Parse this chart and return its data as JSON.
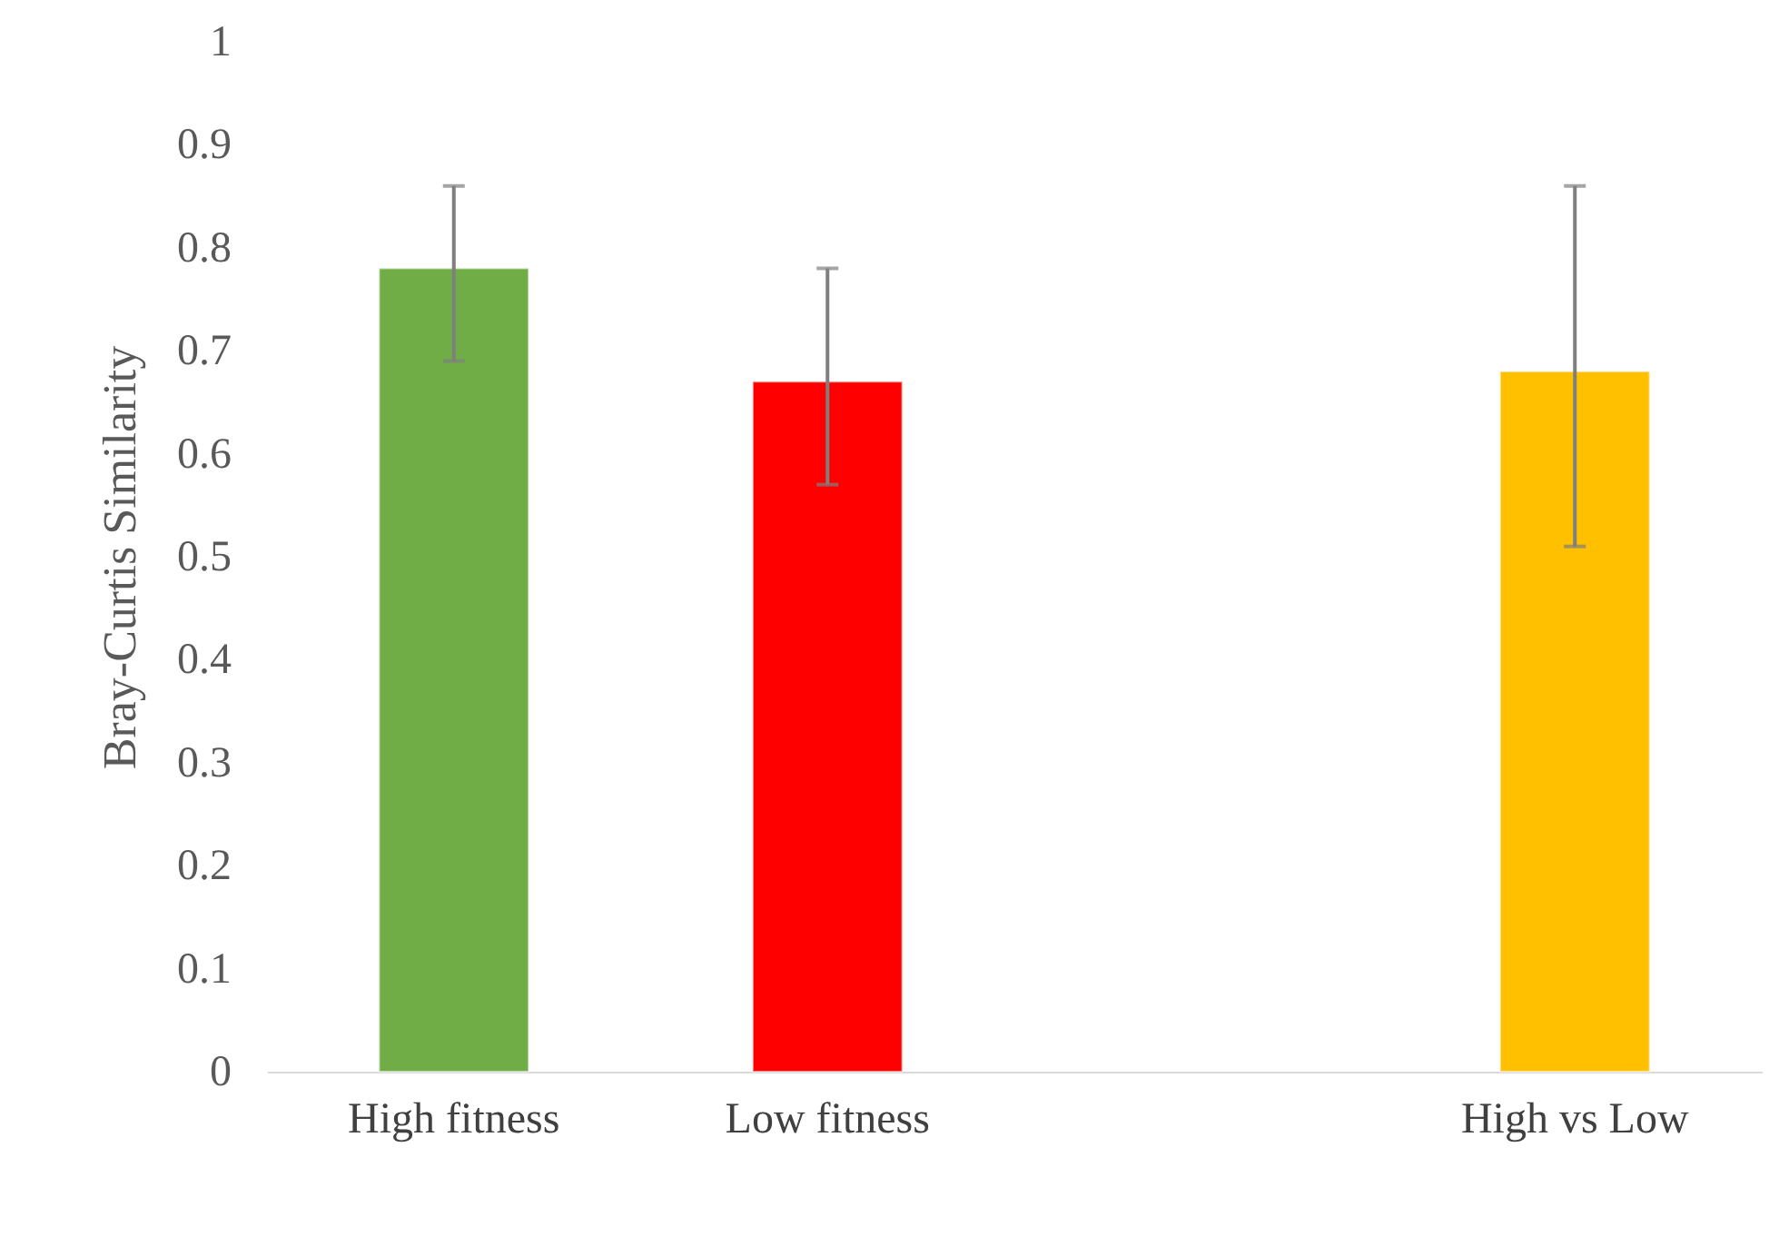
{
  "chart_data": {
    "type": "bar",
    "ylabel": "Bray-Curtis Similarity",
    "categories": [
      "High fitness",
      "Low fitness",
      null,
      "High vs Low"
    ],
    "values": [
      0.78,
      0.67,
      null,
      0.68
    ],
    "colors": [
      "#70ad47",
      "#ff0000",
      "#ffffff",
      "#ffc000"
    ],
    "errors": [
      [
        0.69,
        0.86
      ],
      [
        0.57,
        0.78
      ],
      null,
      [
        0.51,
        0.86
      ]
    ],
    "ylim": [
      0,
      1
    ],
    "yticks": [
      0,
      0.1,
      0.2,
      0.3,
      0.4,
      0.5,
      0.6,
      0.7,
      0.8,
      0.9,
      1
    ],
    "grid": false
  }
}
